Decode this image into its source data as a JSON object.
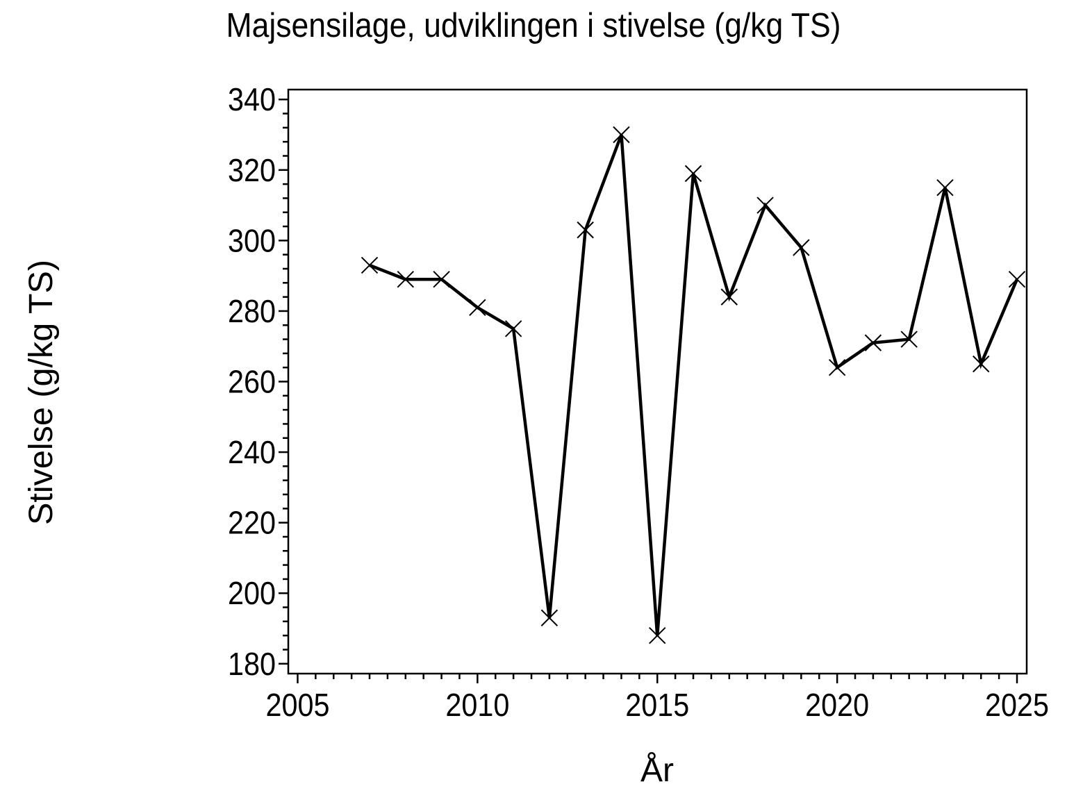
{
  "chart_data": {
    "type": "line",
    "title": "Majsensilage, udviklingen i stivelse (g/kg TS)",
    "xlabel": "År",
    "ylabel": "Stivelse (g/kg TS)",
    "x": [
      2007,
      2008,
      2009,
      2010,
      2011,
      2012,
      2013,
      2014,
      2015,
      2016,
      2017,
      2018,
      2019,
      2020,
      2021,
      2022,
      2023,
      2024,
      2025
    ],
    "values": [
      293,
      289,
      289,
      281,
      275,
      193,
      303,
      330,
      188,
      319,
      284,
      310,
      298,
      264,
      271,
      272,
      315,
      265,
      289
    ],
    "series_name": "Stivelse",
    "marker": "x",
    "line_color": "#000000",
    "marker_color": "#000000",
    "background_color": "#ffffff",
    "xlim": [
      2004.74,
      2025.27
    ],
    "ylim": [
      177.2,
      342.8
    ],
    "x_major_ticks": [
      2005,
      2010,
      2015,
      2020,
      2025
    ],
    "x_minor_step": 0.5,
    "y_major_ticks": [
      180,
      200,
      220,
      240,
      260,
      280,
      300,
      320,
      340
    ],
    "y_minor_step": 4,
    "grid": false,
    "legend": null
  }
}
